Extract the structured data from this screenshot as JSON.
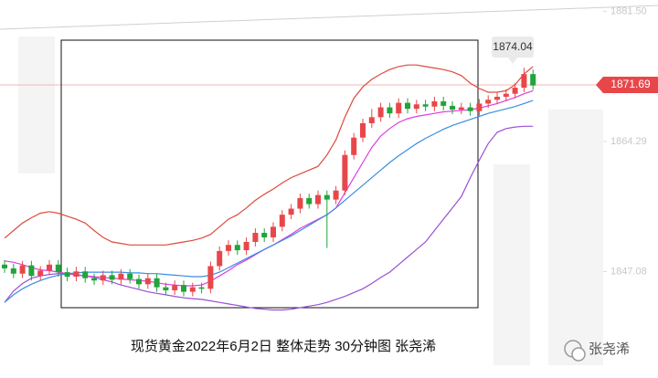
{
  "chart_data": {
    "type": "candlestick",
    "caption": "现货黄金2022年6月2日 整体走势 30分钟图 张尧浠",
    "watermark": "张尧浠",
    "ylim": [
      1833,
      1883
    ],
    "yticks": [
      {
        "value": 1881.5,
        "label": "1881.50"
      },
      1864.29,
      1847.08
    ],
    "up_color": "#e8474a",
    "down_color": "#20a43b",
    "open": [
      1848.0,
      1847.5,
      1846.8,
      1847.9,
      1846.5,
      1847.2,
      1848.0,
      1847.0,
      1846.4,
      1847.1,
      1846.2,
      1845.9,
      1846.6,
      1846.0,
      1846.8,
      1846.1,
      1845.4,
      1846.2,
      1845.0,
      1844.6,
      1845.3,
      1844.4,
      1845.0,
      1844.8,
      1847.8,
      1849.8,
      1850.6,
      1849.9,
      1851.0,
      1852.2,
      1851.6,
      1853.0,
      1854.6,
      1855.4,
      1856.8,
      1856.0,
      1857.2,
      1856.6,
      1857.8,
      1862.5,
      1864.8,
      1866.7,
      1867.5,
      1868.8,
      1868.0,
      1869.4,
      1868.6,
      1869.2,
      1868.9,
      1869.6,
      1869.0,
      1868.5,
      1868.8,
      1868.3,
      1869.3,
      1869.8,
      1870.2,
      1870.6,
      1871.4,
      1873.2
    ],
    "high": [
      1848.6,
      1848.1,
      1848.5,
      1848.5,
      1847.8,
      1848.6,
      1848.6,
      1847.6,
      1847.7,
      1847.7,
      1846.8,
      1847.2,
      1847.2,
      1847.4,
      1847.4,
      1846.7,
      1846.8,
      1846.8,
      1845.6,
      1845.9,
      1845.9,
      1845.6,
      1845.6,
      1848.4,
      1850.4,
      1851.2,
      1851.2,
      1851.6,
      1852.8,
      1852.8,
      1853.6,
      1855.2,
      1856.0,
      1857.4,
      1857.4,
      1857.8,
      1857.8,
      1858.4,
      1863.1,
      1865.4,
      1867.3,
      1868.6,
      1869.4,
      1869.4,
      1870.0,
      1870.0,
      1869.8,
      1869.8,
      1870.2,
      1870.2,
      1869.6,
      1869.4,
      1869.4,
      1869.9,
      1870.4,
      1870.8,
      1871.2,
      1872.0,
      1874.04,
      1873.8
    ],
    "low": [
      1846.9,
      1846.2,
      1846.2,
      1845.9,
      1845.9,
      1846.6,
      1846.4,
      1845.8,
      1845.8,
      1845.6,
      1845.3,
      1845.3,
      1845.4,
      1845.4,
      1845.5,
      1844.8,
      1844.8,
      1844.4,
      1844.0,
      1844.0,
      1843.8,
      1843.8,
      1844.2,
      1844.2,
      1847.2,
      1849.2,
      1849.3,
      1849.3,
      1850.4,
      1851.0,
      1851.0,
      1852.4,
      1854.0,
      1854.8,
      1855.4,
      1855.4,
      1850.2,
      1856.0,
      1857.2,
      1861.9,
      1864.2,
      1866.1,
      1866.9,
      1867.4,
      1867.4,
      1868.0,
      1868.0,
      1868.3,
      1868.3,
      1868.4,
      1867.9,
      1867.9,
      1867.7,
      1867.7,
      1868.7,
      1869.2,
      1869.6,
      1870.0,
      1870.8,
      1871.1
    ],
    "close": [
      1847.5,
      1846.8,
      1847.9,
      1846.5,
      1847.2,
      1848.0,
      1847.0,
      1846.4,
      1847.1,
      1846.2,
      1845.9,
      1846.6,
      1846.0,
      1846.8,
      1846.1,
      1845.4,
      1846.2,
      1845.0,
      1844.6,
      1845.3,
      1844.4,
      1845.0,
      1844.8,
      1847.8,
      1849.8,
      1850.6,
      1849.9,
      1851.0,
      1852.2,
      1851.6,
      1853.0,
      1854.6,
      1855.4,
      1856.8,
      1856.0,
      1857.2,
      1856.6,
      1857.8,
      1862.5,
      1864.8,
      1866.7,
      1867.5,
      1868.8,
      1868.0,
      1869.4,
      1868.6,
      1869.2,
      1868.9,
      1869.6,
      1869.0,
      1868.5,
      1868.8,
      1868.3,
      1869.3,
      1869.8,
      1870.2,
      1870.6,
      1871.4,
      1873.2,
      1871.69
    ],
    "series": [
      {
        "color": "#dd4a3c",
        "values": [
          1851.5,
          1852.5,
          1853.5,
          1854.2,
          1854.8,
          1855.0,
          1854.8,
          1854.4,
          1854.0,
          1853.5,
          1852.5,
          1851.6,
          1851.0,
          1850.8,
          1850.6,
          1850.6,
          1850.6,
          1850.6,
          1850.6,
          1850.8,
          1851.0,
          1851.2,
          1851.5,
          1852.0,
          1853.0,
          1854.0,
          1854.6,
          1855.5,
          1856.5,
          1857.3,
          1858.0,
          1858.8,
          1859.5,
          1860.0,
          1860.5,
          1861.0,
          1862.5,
          1864.5,
          1867.5,
          1870.0,
          1871.5,
          1872.5,
          1873.2,
          1873.8,
          1874.2,
          1874.4,
          1874.4,
          1874.2,
          1874.0,
          1873.8,
          1873.5,
          1873.0,
          1872.0,
          1871.3,
          1870.8,
          1870.8,
          1871.0,
          1871.8,
          1873.2,
          1874.2
        ]
      },
      {
        "color": "#9a4fd6",
        "values": [
          1843.0,
          1844.5,
          1845.5,
          1846.2,
          1846.5,
          1846.7,
          1846.8,
          1846.8,
          1846.7,
          1846.5,
          1846.3,
          1846.0,
          1845.7,
          1845.3,
          1845.0,
          1844.7,
          1844.4,
          1844.2,
          1844.0,
          1843.8,
          1843.6,
          1843.5,
          1843.4,
          1843.2,
          1843.0,
          1842.8,
          1842.6,
          1842.4,
          1842.2,
          1842.1,
          1842.0,
          1842.0,
          1842.1,
          1842.3,
          1842.5,
          1842.7,
          1843.0,
          1843.4,
          1843.8,
          1844.3,
          1844.8,
          1845.5,
          1846.3,
          1847.0,
          1848.0,
          1849.0,
          1850.0,
          1851.0,
          1852.5,
          1854.0,
          1855.5,
          1857.0,
          1859.5,
          1861.8,
          1864.0,
          1865.5,
          1866.0,
          1866.2,
          1866.3,
          1866.3
        ]
      },
      {
        "color": "#e03ce0",
        "values": [
          1848.5,
          1848.3,
          1848.0,
          1847.6,
          1847.3,
          1847.2,
          1847.0,
          1846.8,
          1846.6,
          1846.5,
          1846.4,
          1846.3,
          1846.2,
          1846.1,
          1846.0,
          1845.9,
          1845.8,
          1845.6,
          1845.4,
          1845.3,
          1845.2,
          1845.2,
          1845.3,
          1845.8,
          1846.5,
          1847.2,
          1848.0,
          1848.6,
          1849.3,
          1850.0,
          1850.6,
          1851.3,
          1852.0,
          1852.8,
          1853.4,
          1854.0,
          1854.6,
          1855.5,
          1857.5,
          1859.5,
          1861.5,
          1863.5,
          1865.0,
          1866.0,
          1866.8,
          1867.3,
          1867.6,
          1867.8,
          1868.0,
          1868.2,
          1868.3,
          1868.4,
          1868.5,
          1868.7,
          1869.0,
          1869.3,
          1869.7,
          1870.1,
          1870.6,
          1871.0
        ]
      },
      {
        "color": "#3b8de0",
        "values": [
          1843.0,
          1844.0,
          1844.8,
          1845.4,
          1845.9,
          1846.3,
          1846.6,
          1846.8,
          1846.9,
          1847.0,
          1847.0,
          1847.0,
          1847.0,
          1847.0,
          1846.9,
          1846.9,
          1846.8,
          1846.8,
          1846.7,
          1846.6,
          1846.5,
          1846.4,
          1846.4,
          1846.6,
          1847.0,
          1847.6,
          1848.2,
          1848.8,
          1849.4,
          1850.0,
          1850.6,
          1851.2,
          1851.8,
          1852.5,
          1853.2,
          1853.9,
          1854.6,
          1855.5,
          1856.5,
          1857.5,
          1858.5,
          1859.5,
          1860.5,
          1861.5,
          1862.4,
          1863.2,
          1864.0,
          1864.7,
          1865.3,
          1865.9,
          1866.4,
          1866.8,
          1867.2,
          1867.6,
          1868.0,
          1868.3,
          1868.6,
          1868.9,
          1869.3,
          1869.7
        ]
      }
    ]
  }
}
